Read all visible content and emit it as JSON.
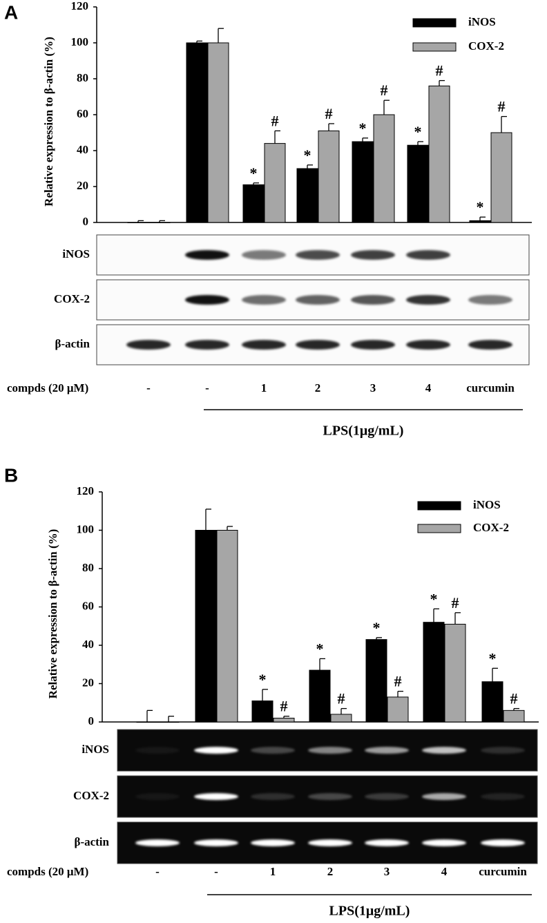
{
  "chart_data": [
    {
      "type": "bar",
      "panel": "A",
      "ylabel": "Relative expression to  β-actin  (%)",
      "categories": [
        "-",
        "-",
        "1",
        "2",
        "3",
        "4",
        "curcumin"
      ],
      "ylim": [
        0,
        120
      ],
      "yticks": [
        0,
        20,
        40,
        60,
        80,
        100,
        120
      ],
      "series": [
        {
          "name": "iNOS",
          "color": "#000000",
          "values": [
            0,
            100,
            21,
            30,
            45,
            43,
            1
          ],
          "errors": [
            1,
            1,
            1,
            2,
            2,
            2,
            2
          ],
          "markers": [
            null,
            null,
            "*",
            "*",
            "*",
            "*",
            "*"
          ]
        },
        {
          "name": "COX-2",
          "color": "#a6a6a6",
          "values": [
            0,
            100,
            44,
            51,
            60,
            76,
            50
          ],
          "errors": [
            1,
            8,
            7,
            4,
            8,
            3,
            9
          ],
          "markers": [
            null,
            null,
            "#",
            "#",
            "#",
            "#",
            "#"
          ]
        }
      ],
      "blots": [
        "iNOS",
        "COX-2",
        "β-actin"
      ],
      "group_label": "compds (20 μM)",
      "bracket_label": "LPS(1μg/mL)"
    },
    {
      "type": "bar",
      "panel": "B",
      "ylabel": "Relative expression to  β-actin  (%)",
      "categories": [
        "-",
        "-",
        "1",
        "2",
        "3",
        "4",
        "curcumin"
      ],
      "ylim": [
        0,
        120
      ],
      "yticks": [
        0,
        20,
        40,
        60,
        80,
        100,
        120
      ],
      "series": [
        {
          "name": "iNOS",
          "color": "#000000",
          "values": [
            0,
            100,
            11,
            27,
            43,
            52,
            21
          ],
          "errors": [
            6,
            11,
            6,
            6,
            1,
            7,
            7
          ],
          "markers": [
            null,
            null,
            "*",
            "*",
            "*",
            "*",
            "*"
          ]
        },
        {
          "name": "COX-2",
          "color": "#a6a6a6",
          "values": [
            0,
            100,
            2,
            4,
            13,
            51,
            6
          ],
          "errors": [
            3,
            2,
            1,
            3,
            3,
            6,
            1
          ],
          "markers": [
            null,
            null,
            "#",
            "#",
            "#",
            "#",
            "#"
          ]
        }
      ],
      "blots": [
        "iNOS",
        "COX-2",
        "β-actin"
      ],
      "group_label": "compds (20 μM)",
      "bracket_label": "LPS(1μg/mL)"
    }
  ]
}
